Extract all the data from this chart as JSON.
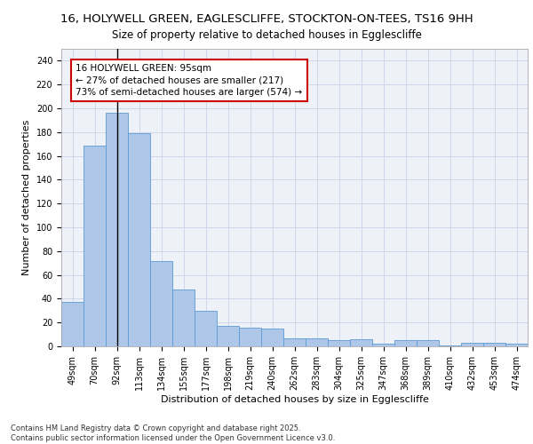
{
  "title_line1": "16, HOLYWELL GREEN, EAGLESCLIFFE, STOCKTON-ON-TEES, TS16 9HH",
  "title_line2": "Size of property relative to detached houses in Egglescliffe",
  "xlabel": "Distribution of detached houses by size in Egglescliffe",
  "ylabel": "Number of detached properties",
  "categories": [
    "49sqm",
    "70sqm",
    "92sqm",
    "113sqm",
    "134sqm",
    "155sqm",
    "177sqm",
    "198sqm",
    "219sqm",
    "240sqm",
    "262sqm",
    "283sqm",
    "304sqm",
    "325sqm",
    "347sqm",
    "368sqm",
    "389sqm",
    "410sqm",
    "432sqm",
    "453sqm",
    "474sqm"
  ],
  "values": [
    37,
    169,
    196,
    179,
    72,
    48,
    30,
    17,
    16,
    15,
    7,
    7,
    5,
    6,
    2,
    5,
    5,
    1,
    3,
    3,
    2
  ],
  "bar_color": "#aec6e8",
  "bar_edge_color": "#5b9bd5",
  "vline_x": 2,
  "annotation_text": "16 HOLYWELL GREEN: 95sqm\n← 27% of detached houses are smaller (217)\n73% of semi-detached houses are larger (574) →",
  "annotation_box_color": "#ffffff",
  "annotation_box_edge": "#cc0000",
  "ylim": [
    0,
    250
  ],
  "yticks": [
    0,
    20,
    40,
    60,
    80,
    100,
    120,
    140,
    160,
    180,
    200,
    220,
    240
  ],
  "grid_color": "#c8d4e8",
  "background_color": "#eef2f8",
  "footer_text": "Contains HM Land Registry data © Crown copyright and database right 2025.\nContains public sector information licensed under the Open Government Licence v3.0.",
  "title_fontsize": 9.5,
  "subtitle_fontsize": 8.5,
  "axis_label_fontsize": 8,
  "tick_fontsize": 7,
  "annotation_fontsize": 7.5
}
